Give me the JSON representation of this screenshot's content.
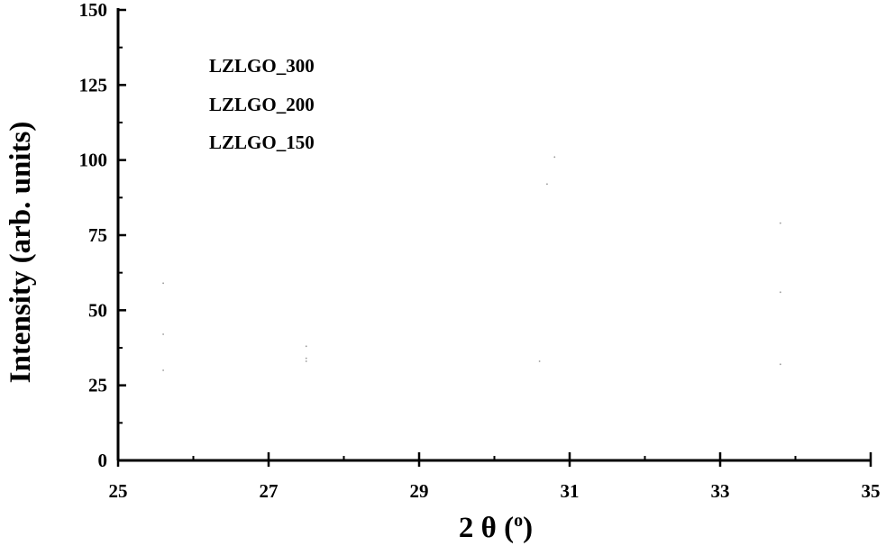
{
  "chart_data": {
    "type": "line",
    "title": "",
    "xlabel_main": "2 θ (",
    "xlabel_sup": "o",
    "xlabel_end": ")",
    "ylabel": "Intensity (arb. units)",
    "xlim": [
      25,
      35
    ],
    "ylim": [
      0,
      150
    ],
    "x_ticks": [
      "25",
      "27",
      "29",
      "31",
      "33",
      "35"
    ],
    "y_ticks": [
      "0",
      "25",
      "50",
      "75",
      "100",
      "125",
      "150"
    ],
    "x_tick_values": [
      25,
      27,
      29,
      31,
      33,
      35
    ],
    "y_tick_values": [
      0,
      25,
      50,
      75,
      100,
      125,
      150
    ],
    "legend_placement": "top-left",
    "grid": false,
    "series": [
      {
        "name": "LZLGO_300",
        "color": "#000000",
        "x": [
          25.6,
          27.5,
          30.8,
          33.8
        ],
        "y": [
          59,
          38,
          101,
          79
        ]
      },
      {
        "name": "LZLGO_200",
        "color": "#000000",
        "x": [
          25.6,
          27.5,
          30.7,
          33.8
        ],
        "y": [
          42,
          34,
          92,
          56
        ]
      },
      {
        "name": "LZLGO_150",
        "color": "#000000",
        "x": [
          25.6,
          27.5,
          30.6,
          33.8
        ],
        "y": [
          30,
          33,
          33,
          32
        ]
      }
    ]
  }
}
